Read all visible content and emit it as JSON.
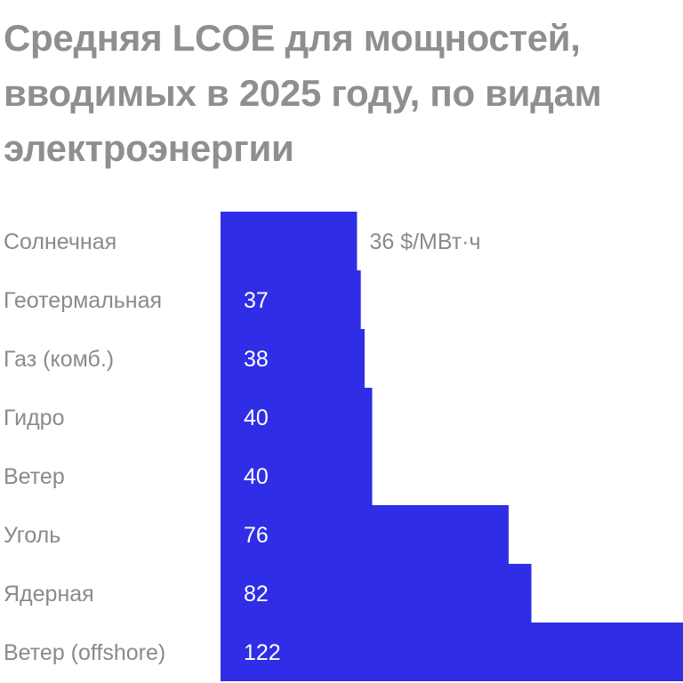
{
  "chart_data": {
    "type": "bar",
    "orientation": "horizontal",
    "title": "Средняя LCOE для мощностей, вводимых в 2025 году, по видам электроэнергии",
    "categories": [
      "Солнечная",
      "Геотермальная",
      "Газ (комб.)",
      "Гидро",
      "Ветер",
      "Уголь",
      "Ядерная",
      "Ветер (offshore)"
    ],
    "values": [
      36,
      37,
      38,
      40,
      40,
      76,
      82,
      122
    ],
    "value_labels": [
      "36 $/МВт·ч",
      "37",
      "38",
      "40",
      "40",
      "76",
      "82",
      "122"
    ],
    "bar_color": "#2f2ee6",
    "xlim": [
      0,
      122
    ]
  }
}
